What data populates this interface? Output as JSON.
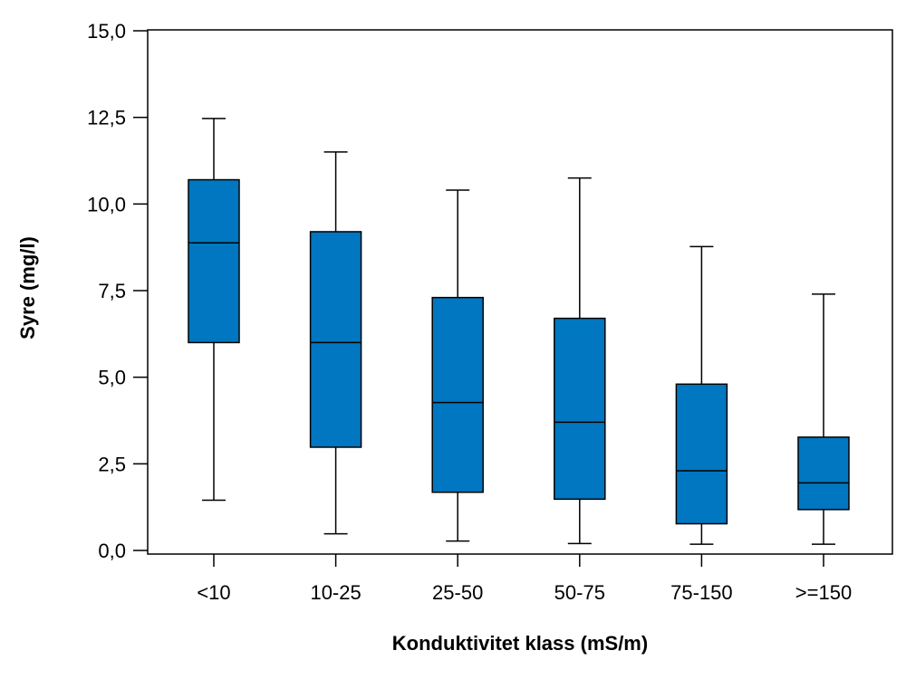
{
  "chart_data": {
    "type": "boxplot",
    "title": "",
    "xlabel": "Konduktivitet klass (mS/m)",
    "ylabel": "Syre (mg/l)",
    "ylim": [
      0,
      15
    ],
    "yticks": [
      "0,0",
      "2,5",
      "5,0",
      "7,5",
      "10,0",
      "12,5",
      "15,0"
    ],
    "ytick_values": [
      0,
      2.5,
      5,
      7.5,
      10,
      12.5,
      15
    ],
    "grid": false,
    "box_color": "#0077c0",
    "categories": [
      "<10",
      "10-25",
      "25-50",
      "50-75",
      "75-150",
      ">=150"
    ],
    "boxes": [
      {
        "min": 1.45,
        "q1": 6.0,
        "median": 8.88,
        "q3": 10.7,
        "max": 12.47
      },
      {
        "min": 0.48,
        "q1": 2.98,
        "median": 6.0,
        "q3": 9.2,
        "max": 11.5
      },
      {
        "min": 0.27,
        "q1": 1.68,
        "median": 4.27,
        "q3": 7.3,
        "max": 10.4
      },
      {
        "min": 0.2,
        "q1": 1.48,
        "median": 3.7,
        "q3": 6.7,
        "max": 10.75
      },
      {
        "min": 0.18,
        "q1": 0.77,
        "median": 2.3,
        "q3": 4.8,
        "max": 8.77
      },
      {
        "min": 0.18,
        "q1": 1.18,
        "median": 1.95,
        "q3": 3.27,
        "max": 7.4
      }
    ]
  }
}
